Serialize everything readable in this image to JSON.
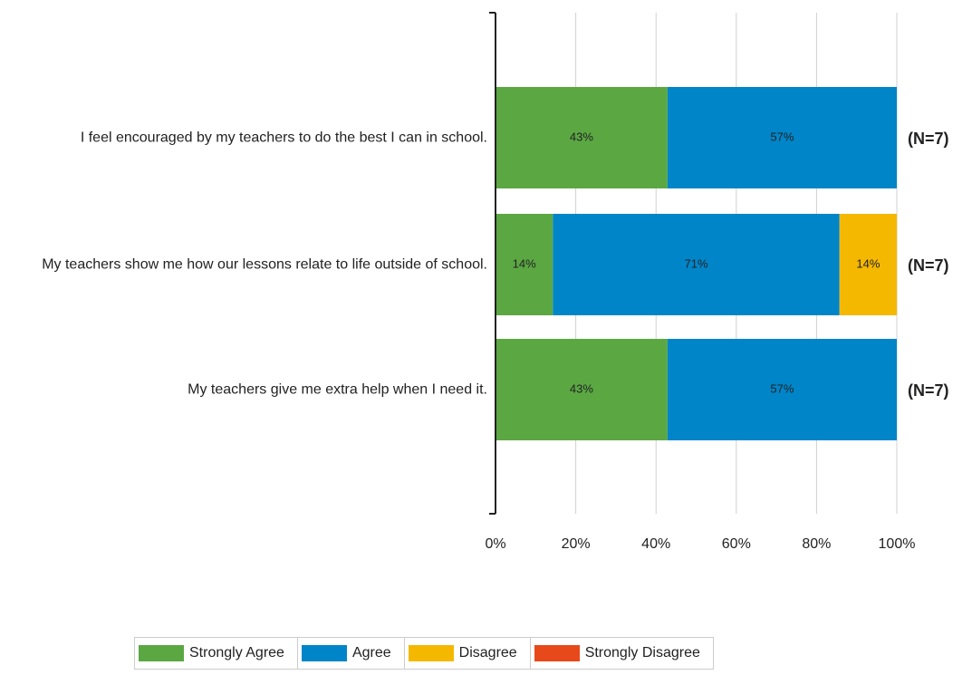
{
  "chart_data": {
    "type": "bar",
    "orientation": "horizontal",
    "stacked": true,
    "categories": [
      "I feel encouraged by my teachers to do the best I can in school.",
      "My teachers show me how our lessons relate to life outside of school.",
      "My teachers give me extra help when I need it."
    ],
    "series": [
      {
        "name": "Strongly Agree",
        "color": "#5ba843",
        "values": [
          42.86,
          14.29,
          42.86
        ],
        "value_labels": [
          "43%",
          "14%",
          "43%"
        ]
      },
      {
        "name": "Agree",
        "color": "#0085c8",
        "values": [
          57.14,
          71.43,
          57.14
        ],
        "value_labels": [
          "57%",
          "71%",
          "57%"
        ]
      },
      {
        "name": "Disagree",
        "color": "#f5b800",
        "values": [
          0,
          14.29,
          0
        ],
        "value_labels": [
          null,
          "14%",
          null
        ]
      },
      {
        "name": "Strongly Disagree",
        "color": "#e8491b",
        "values": [
          0,
          0,
          0
        ],
        "value_labels": [
          null,
          null,
          null
        ]
      }
    ],
    "annotations": [
      "(N=7)",
      "(N=7)",
      "(N=7)"
    ],
    "xlim": [
      0,
      100
    ],
    "xticks": [
      {
        "value": 0,
        "label": "0%"
      },
      {
        "value": 20,
        "label": "20%"
      },
      {
        "value": 40,
        "label": "40%"
      },
      {
        "value": 60,
        "label": "60%"
      },
      {
        "value": 80,
        "label": "80%"
      },
      {
        "value": 100,
        "label": "100%"
      }
    ],
    "grid": true,
    "legend": "bottom"
  }
}
